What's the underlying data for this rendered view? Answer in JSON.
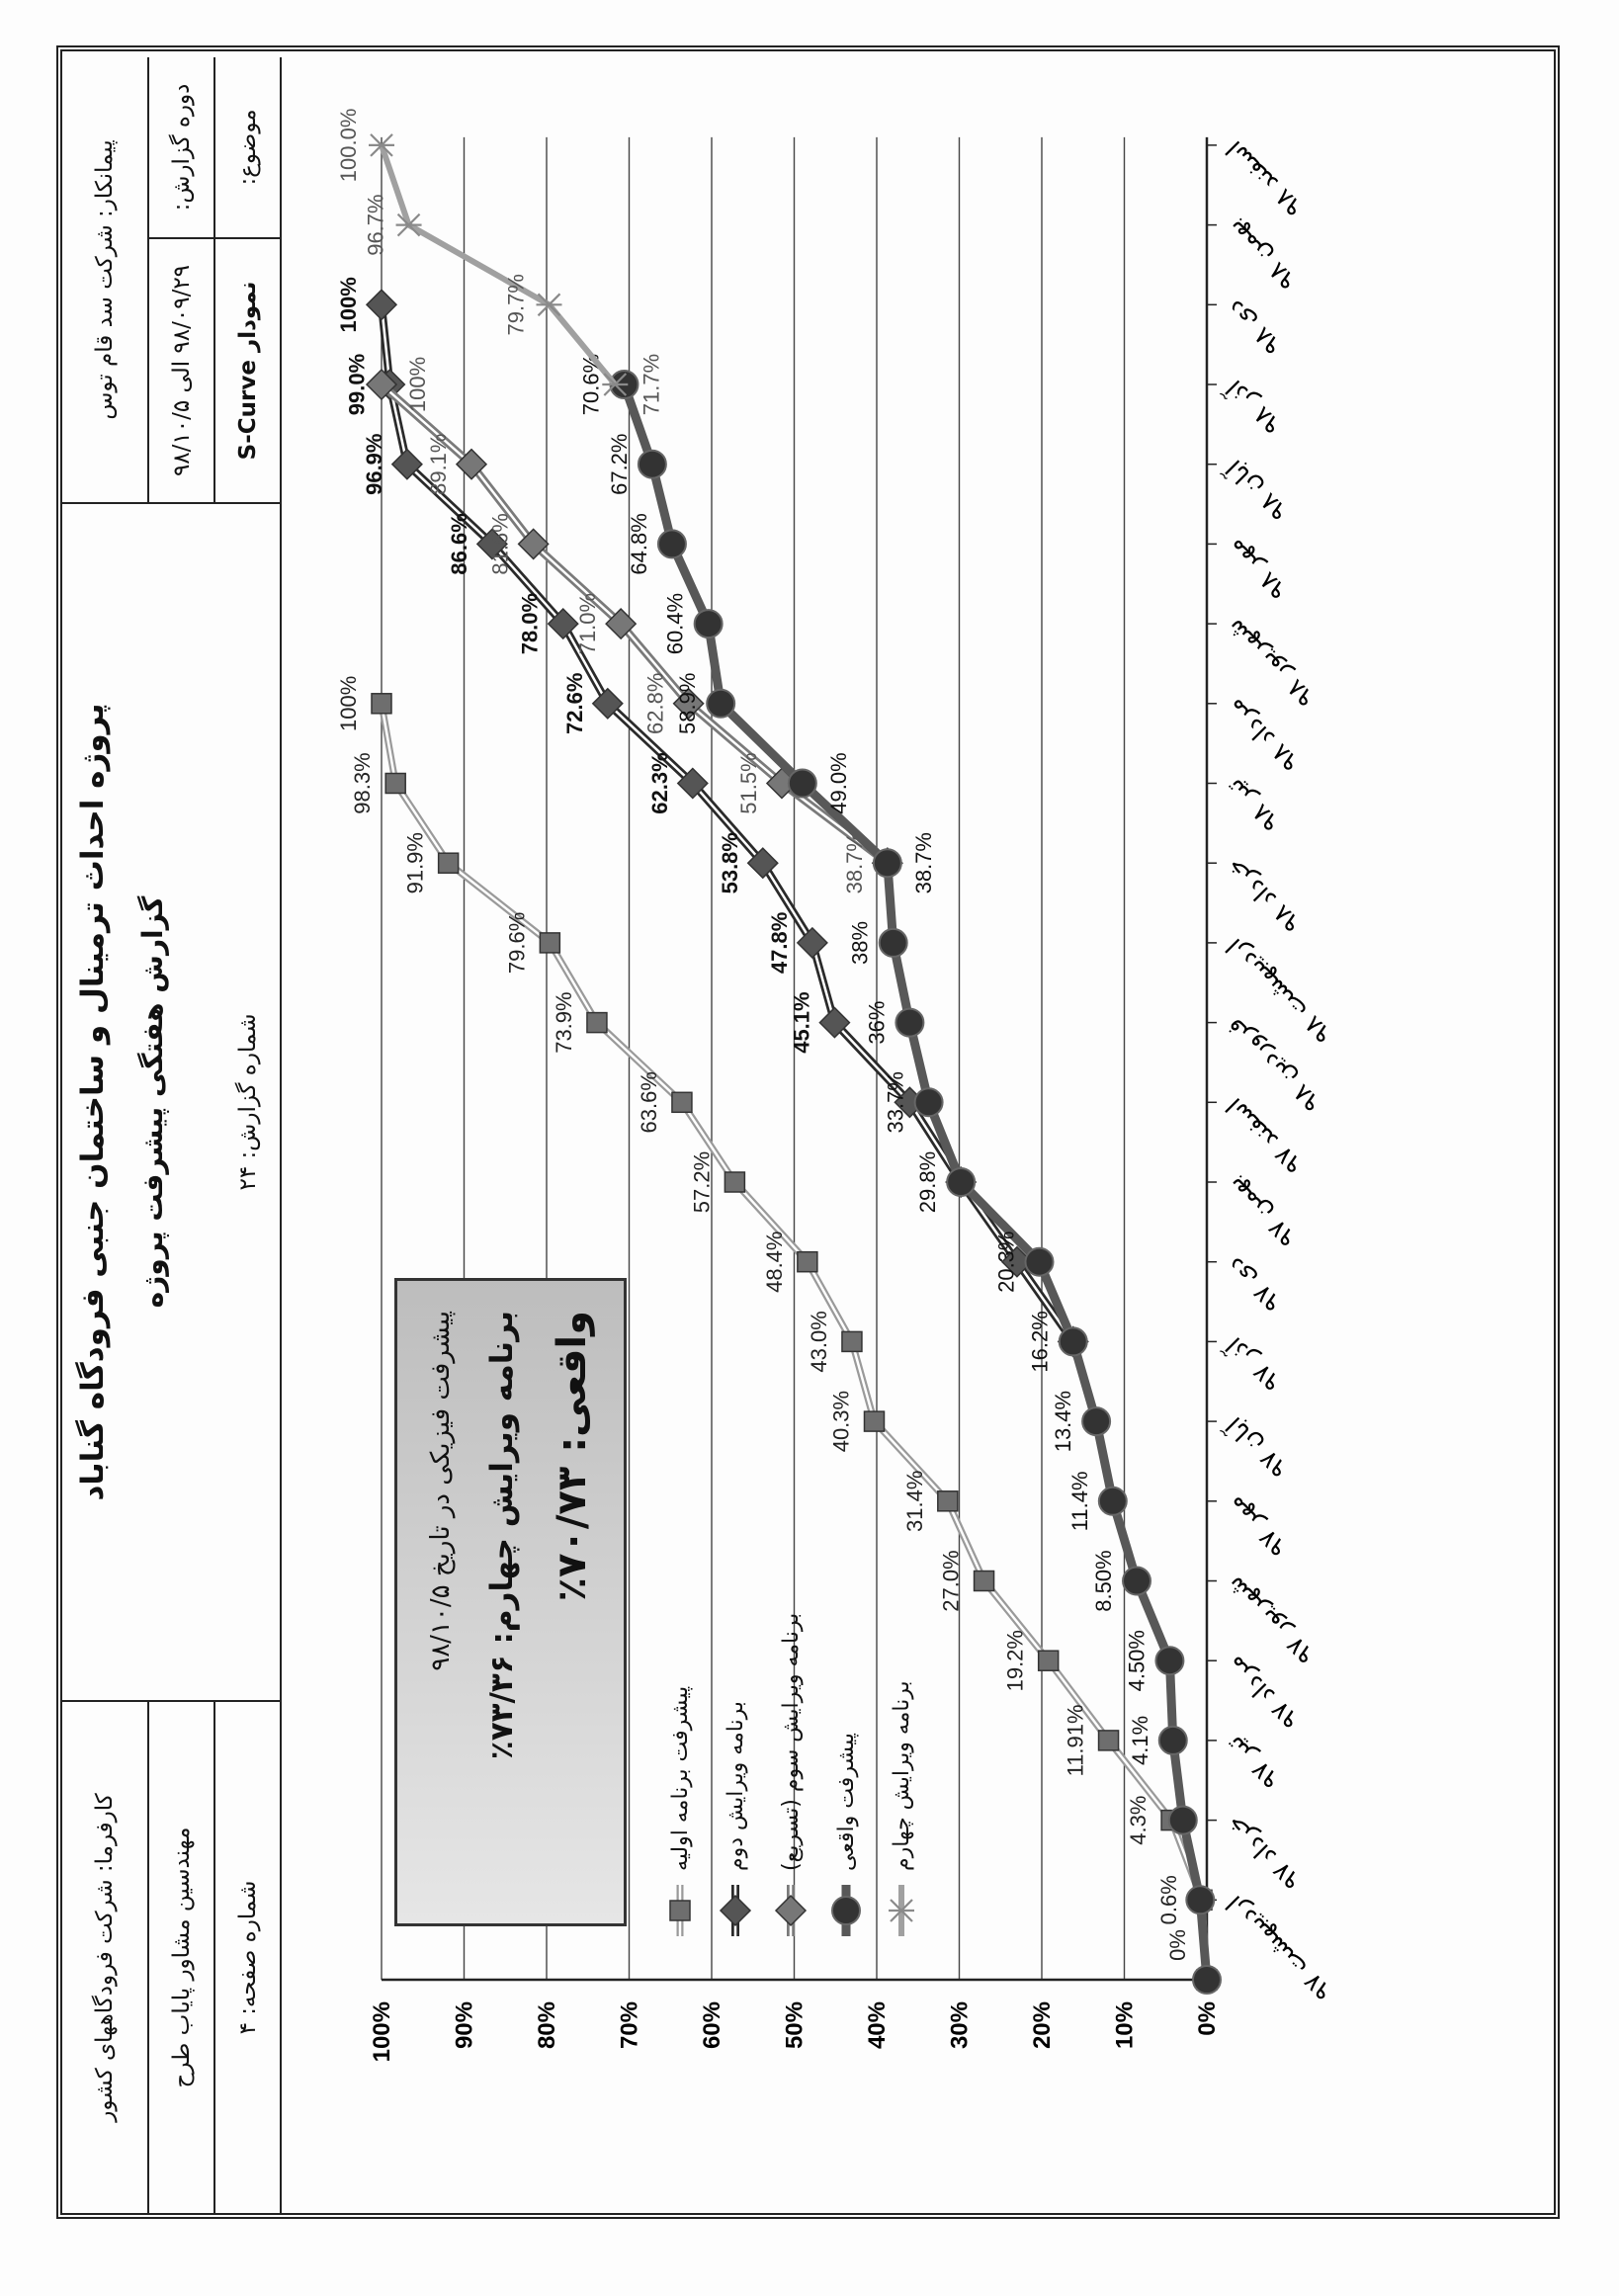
{
  "header": {
    "contractor": "پیمانکار: شرکت سد قام توس",
    "period_label": "دوره گزارش:",
    "period_value": "۹۸/۰۹/۲۹ الی ۹۸/۱۰/۵",
    "subject_label": "موضوع:",
    "subject_value": "نمودار S-Curve",
    "title": "پروژه احداث ترمینال و ساختمان جنبی فرودگاه گناباد",
    "subtitle": "گزارش هفتگی پیشرفت پروژه",
    "report_number": "شماره گزارش: ۲۴",
    "employer": "کارفرما: شرکت فرودگاههای کشور",
    "consultant": "مهندسین مشاور پایاب طرح",
    "page_number": "شماره صفحه: ۴"
  },
  "summary_box": {
    "line1": "پیشرفت فیزیکی در تاریخ ۹۸/۱۰/۵",
    "line2": "برنامه ویرایش چهارم: ۷۳/۳۶٪",
    "line3": "واقعی: ۷۰/۷۳٪"
  },
  "chart_data": {
    "type": "line",
    "title": "",
    "xlabel": "",
    "ylabel": "",
    "ylim": [
      0,
      100
    ],
    "grid": true,
    "legend_placement": "upper-left inside plot",
    "y_ticks": [
      "0%",
      "10%",
      "20%",
      "30%",
      "40%",
      "50%",
      "60%",
      "70%",
      "80%",
      "90%",
      "100%"
    ],
    "categories": [
      "",
      "اردیبهشت ۹۷",
      "خرداد ۹۷",
      "تیر ۹۷",
      "مرداد ۹۷",
      "شهریور ۹۷",
      "مهر ۹۷",
      "آبان ۹۷",
      "آذر ۹۷",
      "دی ۹۷",
      "بهمن ۹۷",
      "اسفند ۹۷",
      "فروردین ۹۸",
      "اردیبهشت ۹۸",
      "خرداد ۹۸",
      "تیر ۹۸",
      "مرداد ۹۸",
      "شهریور ۹۸",
      "مهر ۹۸",
      "آبان ۹۸",
      "آذر ۹۸",
      "دی ۹۸",
      "بهمن ۹۸",
      "اسفند ۹۸"
    ],
    "series": [
      {
        "name": "پیشرفت برنامه اولیه",
        "marker": "square",
        "color": "#9a9a9a",
        "marker_color": "#6e6e6e",
        "label_color": "#222222",
        "values": [
          0,
          0.6,
          4.3,
          11.91,
          19.2,
          27.0,
          31.4,
          40.3,
          43.0,
          48.4,
          57.2,
          63.6,
          73.9,
          79.6,
          91.9,
          98.3,
          100,
          null,
          null,
          null,
          null,
          null,
          null,
          null
        ],
        "labels": [
          "0%",
          "0.6%",
          "4.3%",
          "11.91%",
          "19.2%",
          "27.0%",
          "31.4%",
          "40.3%",
          "43.0%",
          "48.4%",
          "57.2%",
          "63.6%",
          "73.9%",
          "79.6%",
          "91.9%",
          "98.3%",
          "100%",
          null,
          null,
          null,
          null,
          null,
          null,
          null
        ]
      },
      {
        "name": "برنامه ویرایش دوم",
        "marker": "diamond",
        "color": "#2a2a2a",
        "marker_color": "#555555",
        "label_color": "#111111",
        "values": [
          null,
          null,
          null,
          null,
          null,
          null,
          null,
          null,
          16.2,
          23.0,
          29.8,
          36.0,
          45.1,
          47.8,
          53.8,
          62.3,
          72.6,
          78.0,
          86.6,
          96.9,
          99.0,
          100,
          null,
          null
        ],
        "labels": [
          null,
          null,
          null,
          null,
          null,
          null,
          null,
          null,
          null,
          null,
          null,
          null,
          "45.1%",
          "47.8%",
          "53.8%",
          "62.3%",
          "72.6%",
          "78.0%",
          "86.6%",
          "96.9%",
          "99.0%",
          "100%",
          null,
          null
        ]
      },
      {
        "name": "برنامه ویرایش سوم (تسریع)",
        "marker": "diamond",
        "color": "#7a7a7a",
        "marker_color": "#777777",
        "label_color": "#555555",
        "values": [
          null,
          null,
          null,
          null,
          null,
          null,
          null,
          null,
          null,
          null,
          null,
          null,
          null,
          null,
          38.7,
          51.5,
          62.8,
          71.0,
          81.6,
          89.1,
          100,
          null,
          null,
          null
        ],
        "labels": [
          null,
          null,
          null,
          null,
          null,
          null,
          null,
          null,
          null,
          null,
          null,
          null,
          null,
          null,
          "38.7%",
          "51.5%",
          "62.8%",
          "71.0%",
          "81.6%",
          "89.1%",
          "100%",
          null,
          null,
          null
        ]
      },
      {
        "name": "پیشرفت واقعی",
        "marker": "circle",
        "color": "#585858",
        "marker_color": "#333333",
        "label_color": "#111111",
        "values": [
          0,
          0.8,
          2.9,
          4.1,
          4.5,
          8.5,
          11.4,
          13.4,
          16.2,
          20.3,
          29.8,
          33.7,
          36,
          38,
          38.7,
          49.0,
          58.9,
          60.4,
          64.8,
          67.2,
          70.6,
          null,
          null,
          null
        ],
        "labels": [
          null,
          null,
          null,
          "4.1%",
          "4.50%",
          "8.50%",
          "11.4%",
          "13.4%",
          "16.2%",
          "20.3%",
          "29.8%",
          "33.7%",
          "36%",
          "38%",
          "38.7%",
          "49.0%",
          "58.9%",
          "60.4%",
          "64.8%",
          "67.2%",
          "70.6%",
          null,
          null,
          null
        ]
      },
      {
        "name": "برنامه ویرایش چهارم",
        "marker": "star",
        "color": "#a0a0a0",
        "marker_color": "#8a8a8a",
        "label_color": "#555555",
        "values": [
          null,
          null,
          null,
          null,
          null,
          null,
          null,
          null,
          null,
          null,
          null,
          null,
          null,
          null,
          null,
          null,
          null,
          null,
          null,
          null,
          71.7,
          79.7,
          96.7,
          100.0
        ],
        "labels": [
          null,
          null,
          null,
          null,
          null,
          null,
          null,
          null,
          null,
          null,
          null,
          null,
          null,
          null,
          null,
          null,
          null,
          null,
          null,
          null,
          "71.7%",
          "79.7%",
          "96.7%",
          "100.0%"
        ]
      }
    ]
  }
}
